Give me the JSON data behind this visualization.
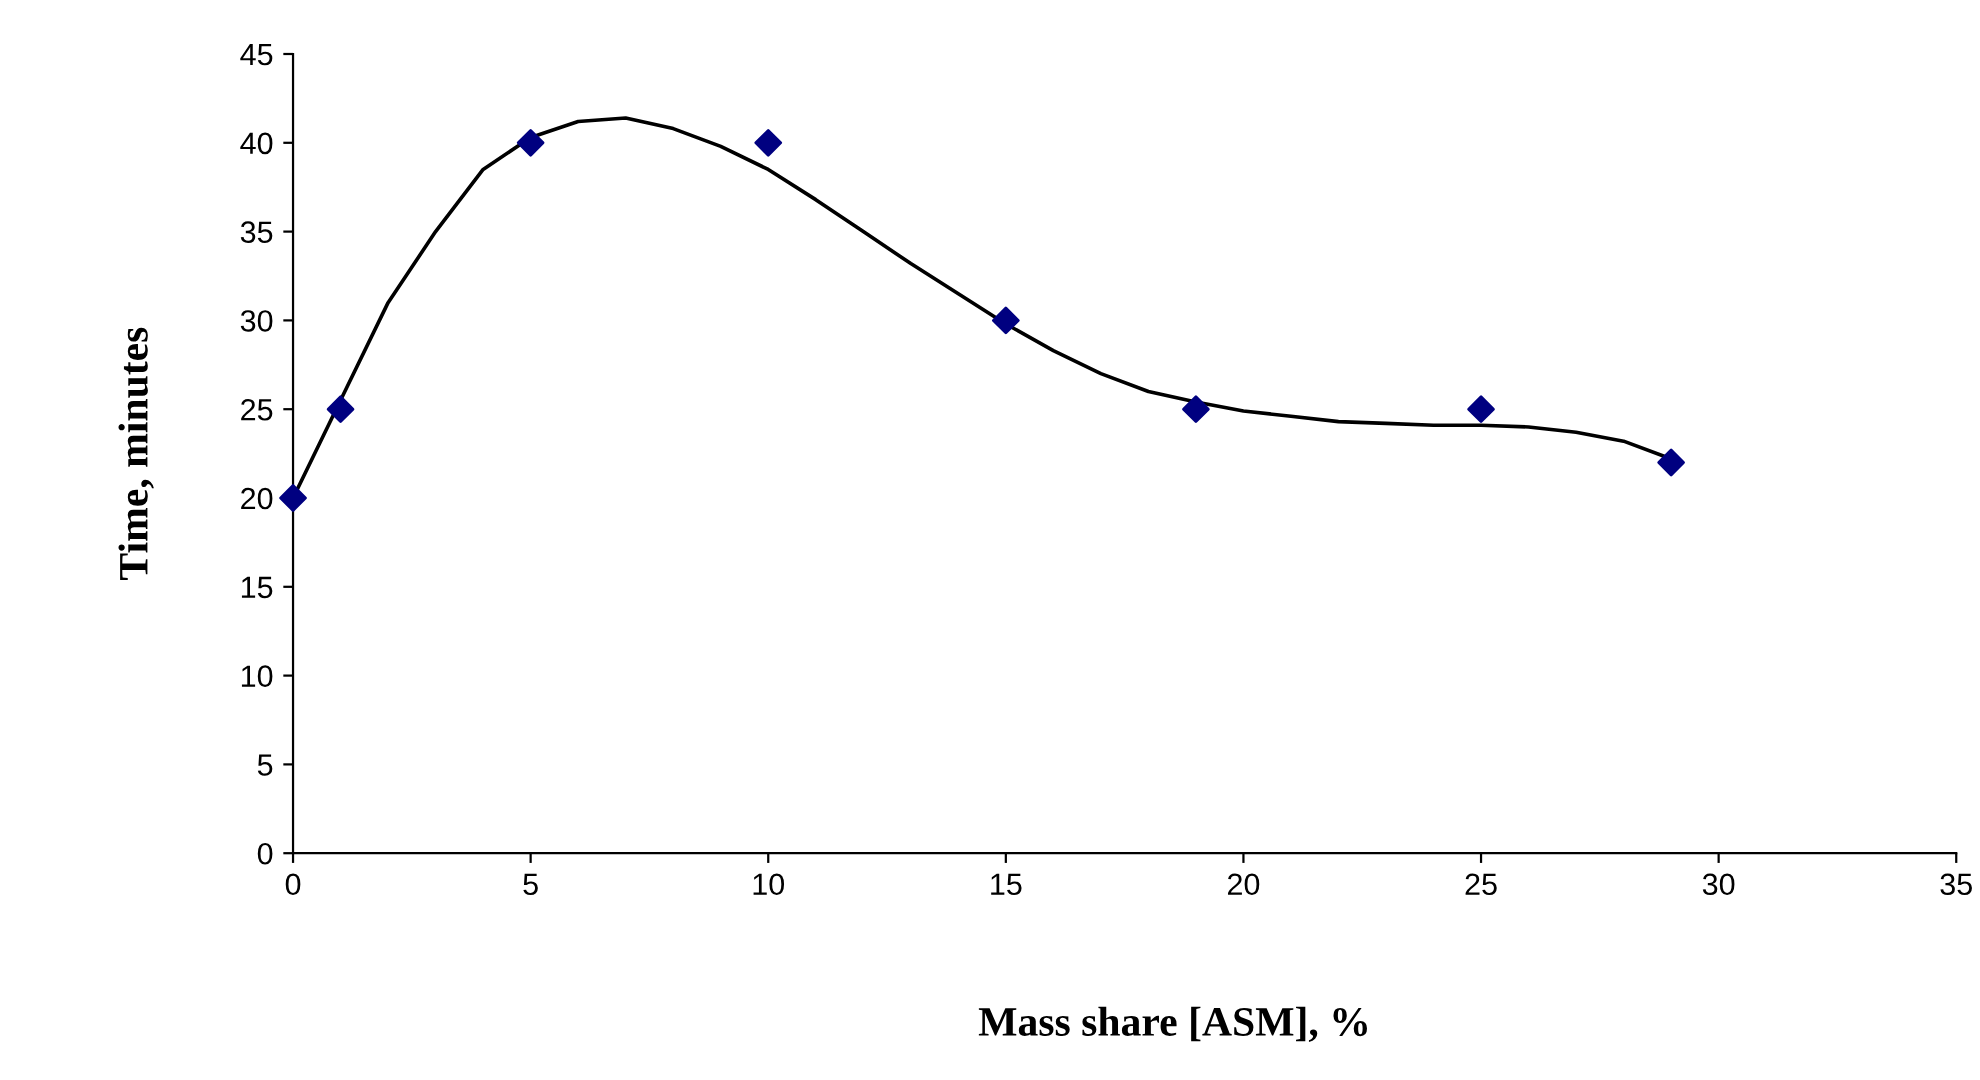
{
  "chart_data": {
    "type": "scatter",
    "xlabel": "Mass share [ASM], %",
    "ylabel": "Time, minutes",
    "xlim": [
      0,
      35
    ],
    "xticks": [
      0,
      5,
      10,
      15,
      20,
      25,
      30,
      35
    ],
    "ylim": [
      0,
      45
    ],
    "yticks": [
      0,
      5,
      10,
      15,
      20,
      25,
      30,
      35,
      40,
      45
    ],
    "grid": false,
    "legend": false,
    "series": [
      {
        "color": "#000080",
        "marker": "diamond",
        "x": [
          0,
          1,
          5,
          10,
          15,
          19,
          25,
          29
        ],
        "values": [
          20,
          25,
          40,
          40,
          30,
          25,
          25,
          22
        ]
      },
      {
        "type": "line",
        "color": "#000000",
        "marker": "none",
        "line_style": "solid",
        "x": [
          0,
          1,
          2,
          3,
          4,
          5,
          6,
          7,
          8,
          9,
          10,
          11,
          12,
          13,
          14,
          15,
          16,
          17,
          18,
          19,
          20,
          21,
          22,
          23,
          24,
          25,
          26,
          27,
          28,
          29
        ],
        "values": [
          20,
          25.5,
          31,
          35,
          38.5,
          40.3,
          41.2,
          41.4,
          40.8,
          39.8,
          38.5,
          36.8,
          35,
          33.2,
          31.5,
          29.8,
          28.3,
          27,
          26,
          25.4,
          24.9,
          24.6,
          24.3,
          24.2,
          24.1,
          24.1,
          24,
          23.7,
          23.2,
          22.2
        ]
      }
    ]
  }
}
